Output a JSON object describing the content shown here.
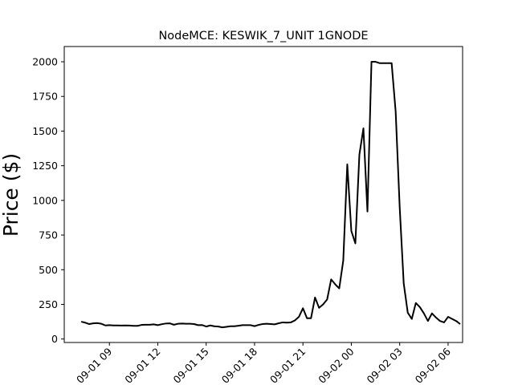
{
  "chart_data": {
    "type": "line",
    "title": "NodeMCE: KESWIK_7_UNIT 1GNODE",
    "xlabel": "",
    "ylabel": "Price ($)",
    "ylim": [
      -25,
      2110
    ],
    "xlim_hours": [
      6.2,
      30.9
    ],
    "grid": false,
    "legend": "none",
    "line_color": "#000000",
    "y_ticks": [
      0,
      250,
      500,
      750,
      1000,
      1250,
      1500,
      1750,
      2000
    ],
    "x_ticks": [
      {
        "hour": 9,
        "label": "09-01 09"
      },
      {
        "hour": 12,
        "label": "09-01 12"
      },
      {
        "hour": 15,
        "label": "09-01 15"
      },
      {
        "hour": 18,
        "label": "09-01 18"
      },
      {
        "hour": 21,
        "label": "09-01 21"
      },
      {
        "hour": 24,
        "label": "09-02 00"
      },
      {
        "hour": 27,
        "label": "09-02 03"
      },
      {
        "hour": 30,
        "label": "09-02 06"
      }
    ],
    "series": [
      {
        "x_hours": [
          7.25,
          7.5,
          7.75,
          8.0,
          8.25,
          8.5,
          8.75,
          9.0,
          9.25,
          9.5,
          9.75,
          10.0,
          10.25,
          10.5,
          10.75,
          11.0,
          11.25,
          11.5,
          11.75,
          12.0,
          12.25,
          12.5,
          12.75,
          13.0,
          13.25,
          13.5,
          13.75,
          14.0,
          14.25,
          14.5,
          14.75,
          15.0,
          15.25,
          15.5,
          15.75,
          16.0,
          16.25,
          16.5,
          16.75,
          17.0,
          17.25,
          17.5,
          17.75,
          18.0,
          18.25,
          18.5,
          18.75,
          19.0,
          19.25,
          19.5,
          19.75,
          20.0,
          20.25,
          20.5,
          20.75,
          21.0,
          21.25,
          21.5,
          21.75,
          22.0,
          22.25,
          22.5,
          22.75,
          23.0,
          23.25,
          23.5,
          23.75,
          24.0,
          24.25,
          24.5,
          24.75,
          25.0,
          25.25,
          25.5,
          25.75,
          26.0,
          26.25,
          26.5,
          26.75,
          27.0,
          27.25,
          27.5,
          27.75,
          28.0,
          28.25,
          28.5,
          28.75,
          29.0,
          29.25,
          29.5,
          29.75,
          30.0,
          30.25,
          30.5,
          30.75
        ],
        "y": [
          125,
          118,
          108,
          113,
          115,
          110,
          98,
          100,
          98,
          98,
          97,
          98,
          97,
          95,
          95,
          102,
          103,
          103,
          106,
          100,
          107,
          112,
          113,
          103,
          110,
          112,
          110,
          110,
          108,
          100,
          101,
          90,
          98,
          92,
          90,
          84,
          88,
          92,
          92,
          96,
          100,
          100,
          100,
          93,
          102,
          108,
          110,
          108,
          106,
          114,
          120,
          118,
          120,
          134,
          160,
          222,
          150,
          150,
          300,
          225,
          250,
          285,
          430,
          395,
          365,
          565,
          1260,
          780,
          690,
          1330,
          1520,
          920,
          2000,
          2000,
          1990,
          1990,
          1990,
          1990,
          1640,
          950,
          400,
          190,
          145,
          260,
          230,
          185,
          130,
          185,
          155,
          130,
          120,
          160,
          145,
          130,
          108
        ]
      }
    ]
  }
}
